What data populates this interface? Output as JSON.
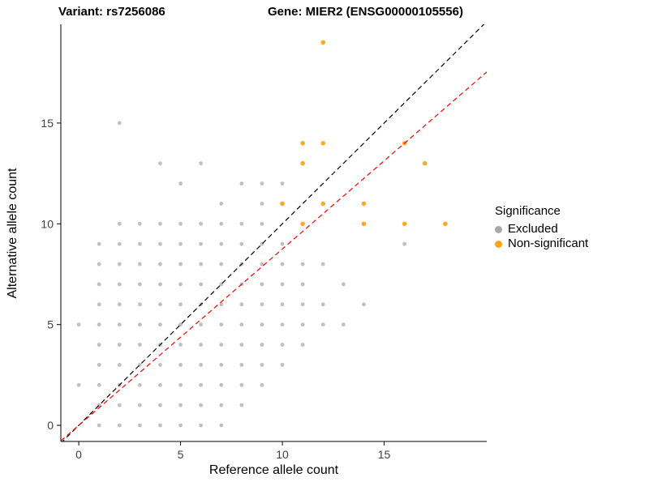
{
  "chart_data": {
    "type": "scatter",
    "title_left": "Variant: rs7256086",
    "title_right": "Gene: MIER2 (ENSG00000105556)",
    "xlabel": "Reference allele count",
    "ylabel": "Alternative allele count",
    "xlim": [
      -0.88,
      20.04
    ],
    "ylim": [
      -0.8,
      19.9
    ],
    "xticks": [
      0,
      5,
      10,
      15
    ],
    "yticks": [
      0,
      5,
      10,
      15
    ],
    "grid": false,
    "legend": {
      "title": "Significance",
      "position": "right",
      "entries": [
        {
          "label": "Excluded",
          "color": "#a8a8a8"
        },
        {
          "label": "Non-significant",
          "color": "#ffa41b"
        }
      ]
    },
    "lines": [
      {
        "name": "identity-line",
        "slope": 1,
        "intercept": 0,
        "color": "#000000",
        "dash": "6,4"
      },
      {
        "name": "fit-line",
        "slope": 0.875,
        "intercept": 0,
        "color": "#ff0000",
        "dash": "6,4"
      }
    ],
    "series": [
      {
        "name": "Excluded",
        "color": "#8c8c8c",
        "opacity": 0.55,
        "radius": 2.4,
        "points": [
          [
            1,
            0
          ],
          [
            2,
            0
          ],
          [
            3,
            0
          ],
          [
            4,
            0
          ],
          [
            5,
            0
          ],
          [
            6,
            0
          ],
          [
            7,
            0
          ],
          [
            1,
            1
          ],
          [
            2,
            1
          ],
          [
            3,
            1
          ],
          [
            4,
            1
          ],
          [
            5,
            1
          ],
          [
            6,
            1
          ],
          [
            7,
            1
          ],
          [
            8,
            1
          ],
          [
            0,
            2
          ],
          [
            1,
            2
          ],
          [
            2,
            2
          ],
          [
            3,
            2
          ],
          [
            4,
            2
          ],
          [
            5,
            2
          ],
          [
            6,
            2
          ],
          [
            7,
            2
          ],
          [
            8,
            2
          ],
          [
            9,
            2
          ],
          [
            1,
            3
          ],
          [
            2,
            3
          ],
          [
            3,
            3
          ],
          [
            4,
            3
          ],
          [
            5,
            3
          ],
          [
            6,
            3
          ],
          [
            7,
            3
          ],
          [
            8,
            3
          ],
          [
            9,
            3
          ],
          [
            10,
            3
          ],
          [
            1,
            4
          ],
          [
            2,
            4
          ],
          [
            3,
            4
          ],
          [
            4,
            4
          ],
          [
            5,
            4
          ],
          [
            6,
            4
          ],
          [
            7,
            4
          ],
          [
            8,
            4
          ],
          [
            9,
            4
          ],
          [
            10,
            4
          ],
          [
            11,
            4
          ],
          [
            0,
            5
          ],
          [
            1,
            5
          ],
          [
            2,
            5
          ],
          [
            3,
            5
          ],
          [
            4,
            5
          ],
          [
            5,
            5
          ],
          [
            6,
            5
          ],
          [
            7,
            5
          ],
          [
            8,
            5
          ],
          [
            9,
            5
          ],
          [
            10,
            5
          ],
          [
            11,
            5
          ],
          [
            12,
            5
          ],
          [
            13,
            5
          ],
          [
            1,
            6
          ],
          [
            2,
            6
          ],
          [
            3,
            6
          ],
          [
            4,
            6
          ],
          [
            5,
            6
          ],
          [
            6,
            6
          ],
          [
            7,
            6
          ],
          [
            8,
            6
          ],
          [
            9,
            6
          ],
          [
            10,
            6
          ],
          [
            11,
            6
          ],
          [
            12,
            6
          ],
          [
            14,
            6
          ],
          [
            1,
            7
          ],
          [
            2,
            7
          ],
          [
            3,
            7
          ],
          [
            4,
            7
          ],
          [
            5,
            7
          ],
          [
            6,
            7
          ],
          [
            7,
            7
          ],
          [
            8,
            7
          ],
          [
            9,
            7
          ],
          [
            10,
            7
          ],
          [
            11,
            7
          ],
          [
            13,
            7
          ],
          [
            1,
            8
          ],
          [
            2,
            8
          ],
          [
            3,
            8
          ],
          [
            4,
            8
          ],
          [
            5,
            8
          ],
          [
            6,
            8
          ],
          [
            7,
            8
          ],
          [
            8,
            8
          ],
          [
            9,
            8
          ],
          [
            10,
            8
          ],
          [
            11,
            8
          ],
          [
            12,
            8
          ],
          [
            1,
            9
          ],
          [
            2,
            9
          ],
          [
            3,
            9
          ],
          [
            4,
            9
          ],
          [
            5,
            9
          ],
          [
            6,
            9
          ],
          [
            7,
            9
          ],
          [
            8,
            9
          ],
          [
            9,
            9
          ],
          [
            10,
            9
          ],
          [
            16,
            9
          ],
          [
            2,
            10
          ],
          [
            3,
            10
          ],
          [
            4,
            10
          ],
          [
            5,
            10
          ],
          [
            6,
            10
          ],
          [
            7,
            10
          ],
          [
            8,
            10
          ],
          [
            9,
            10
          ],
          [
            7,
            11
          ],
          [
            9,
            11
          ],
          [
            5,
            12
          ],
          [
            8,
            12
          ],
          [
            9,
            12
          ],
          [
            10,
            12
          ],
          [
            4,
            13
          ],
          [
            6,
            13
          ],
          [
            2,
            15
          ]
        ]
      },
      {
        "name": "Non-significant",
        "color": "#ffa41b",
        "opacity": 0.95,
        "radius": 2.8,
        "points": [
          [
            12,
            19
          ],
          [
            11,
            14
          ],
          [
            12,
            14
          ],
          [
            16,
            14
          ],
          [
            11,
            13
          ],
          [
            17,
            13
          ],
          [
            10,
            11
          ],
          [
            12,
            11
          ],
          [
            14,
            11
          ],
          [
            11,
            10
          ],
          [
            14,
            10
          ],
          [
            16,
            10
          ],
          [
            18,
            10
          ]
        ]
      }
    ]
  }
}
